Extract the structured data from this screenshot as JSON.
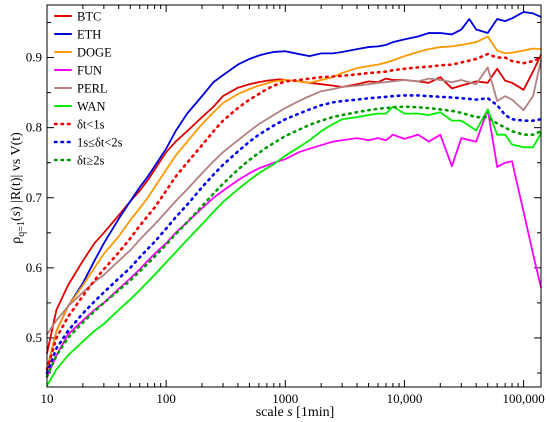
{
  "chart_data": {
    "type": "line",
    "xscale": "log",
    "xlim": [
      10,
      140000
    ],
    "ylim": [
      0.43,
      0.975
    ],
    "xlabel": {
      "prefix": "scale ",
      "var": "s",
      "unit": " [1min]"
    },
    "ylabel": {
      "rho": "ρ",
      "sub": "q=1",
      "rest_a": "(",
      "var": "s",
      "rest_b": ") |R(t)| vs V(t)"
    },
    "xticks": [
      {
        "value": 10,
        "label": "10"
      },
      {
        "value": 100,
        "label": "100"
      },
      {
        "value": 1000,
        "label": "1000"
      },
      {
        "value": 10000,
        "label": "10,000"
      },
      {
        "value": 100000,
        "label": "100,000"
      }
    ],
    "yticks": [
      {
        "value": 0.5,
        "label": "0.5"
      },
      {
        "value": 0.6,
        "label": "0.6"
      },
      {
        "value": 0.7,
        "label": "0.7"
      },
      {
        "value": 0.8,
        "label": "0.8"
      },
      {
        "value": 0.9,
        "label": "0.9"
      }
    ],
    "legend_position": "top-left",
    "series": [
      {
        "name": "BTC",
        "color": "#dd0000",
        "dash": "solid",
        "x": [
          10,
          12,
          15,
          20,
          25,
          30,
          40,
          50,
          60,
          70,
          80,
          100,
          120,
          150,
          200,
          250,
          300,
          400,
          500,
          600,
          700,
          800,
          900,
          1000,
          1300,
          1600,
          2000,
          2500,
          3000,
          4000,
          5000,
          6000,
          7000,
          8000,
          10000,
          13000,
          16000,
          20000,
          25000,
          30000,
          40000,
          50000,
          60000,
          70000,
          80000,
          100000,
          120000,
          140000
        ],
        "y": [
          0.478,
          0.54,
          0.575,
          0.61,
          0.635,
          0.65,
          0.675,
          0.695,
          0.71,
          0.725,
          0.74,
          0.765,
          0.78,
          0.795,
          0.815,
          0.83,
          0.845,
          0.857,
          0.862,
          0.865,
          0.867,
          0.868,
          0.869,
          0.868,
          0.866,
          0.864,
          0.862,
          0.86,
          0.858,
          0.862,
          0.866,
          0.865,
          0.87,
          0.868,
          0.868,
          0.866,
          0.864,
          0.872,
          0.856,
          0.86,
          0.866,
          0.864,
          0.884,
          0.867,
          0.864,
          0.854,
          0.88,
          0.904
        ]
      },
      {
        "name": "ETH",
        "color": "#0000dd",
        "dash": "solid",
        "x": [
          10,
          12,
          15,
          20,
          25,
          30,
          40,
          50,
          60,
          70,
          80,
          100,
          120,
          150,
          200,
          250,
          300,
          400,
          500,
          600,
          700,
          800,
          1000,
          1300,
          1600,
          2000,
          2500,
          3000,
          4000,
          5000,
          6000,
          7000,
          8000,
          10000,
          13000,
          16000,
          20000,
          25000,
          30000,
          35000,
          40000,
          50000,
          60000,
          70000,
          80000,
          100000,
          120000,
          140000
        ],
        "y": [
          0.455,
          0.51,
          0.545,
          0.578,
          0.61,
          0.635,
          0.67,
          0.695,
          0.715,
          0.73,
          0.745,
          0.77,
          0.795,
          0.82,
          0.845,
          0.865,
          0.875,
          0.89,
          0.898,
          0.903,
          0.906,
          0.908,
          0.909,
          0.905,
          0.902,
          0.906,
          0.906,
          0.908,
          0.912,
          0.915,
          0.916,
          0.918,
          0.922,
          0.926,
          0.93,
          0.935,
          0.935,
          0.933,
          0.94,
          0.955,
          0.94,
          0.935,
          0.955,
          0.952,
          0.956,
          0.965,
          0.963,
          0.958
        ]
      },
      {
        "name": "DOGE",
        "color": "#ff9900",
        "dash": "solid",
        "x": [
          10,
          12,
          15,
          20,
          25,
          30,
          40,
          50,
          60,
          70,
          80,
          100,
          120,
          150,
          200,
          250,
          300,
          400,
          500,
          600,
          700,
          800,
          1000,
          1300,
          1600,
          2000,
          2500,
          3000,
          4000,
          5000,
          6000,
          7000,
          8000,
          10000,
          13000,
          16000,
          20000,
          25000,
          30000,
          40000,
          50000,
          60000,
          70000,
          80000,
          100000,
          120000,
          140000
        ],
        "y": [
          0.455,
          0.51,
          0.545,
          0.575,
          0.6,
          0.62,
          0.645,
          0.668,
          0.685,
          0.7,
          0.715,
          0.74,
          0.76,
          0.78,
          0.805,
          0.822,
          0.835,
          0.848,
          0.855,
          0.86,
          0.863,
          0.866,
          0.868,
          0.866,
          0.864,
          0.868,
          0.872,
          0.878,
          0.885,
          0.888,
          0.89,
          0.893,
          0.896,
          0.902,
          0.908,
          0.912,
          0.915,
          0.916,
          0.918,
          0.922,
          0.93,
          0.91,
          0.906,
          0.907,
          0.91,
          0.913,
          0.912
        ]
      },
      {
        "name": "FUN",
        "color": "#ff00ff",
        "dash": "solid",
        "x": [
          10,
          12,
          15,
          20,
          25,
          30,
          40,
          50,
          60,
          70,
          80,
          100,
          120,
          150,
          200,
          250,
          300,
          400,
          500,
          600,
          700,
          800,
          1000,
          1300,
          1600,
          2000,
          2500,
          3000,
          4000,
          5000,
          6000,
          7000,
          8000,
          10000,
          13000,
          16000,
          20000,
          25000,
          30000,
          40000,
          50000,
          60000,
          70000,
          80000,
          100000,
          120000,
          140000
        ],
        "y": [
          0.445,
          0.475,
          0.505,
          0.525,
          0.54,
          0.55,
          0.57,
          0.585,
          0.598,
          0.61,
          0.62,
          0.635,
          0.65,
          0.665,
          0.685,
          0.7,
          0.71,
          0.725,
          0.735,
          0.742,
          0.746,
          0.75,
          0.755,
          0.765,
          0.77,
          0.775,
          0.78,
          0.782,
          0.785,
          0.782,
          0.785,
          0.782,
          0.79,
          0.784,
          0.79,
          0.78,
          0.79,
          0.745,
          0.785,
          0.78,
          0.826,
          0.744,
          0.75,
          0.752,
          0.68,
          0.62,
          0.572
        ]
      },
      {
        "name": "PERL",
        "color": "#b38080",
        "dash": "solid",
        "x": [
          10,
          12,
          15,
          20,
          25,
          30,
          40,
          50,
          60,
          70,
          80,
          100,
          120,
          150,
          200,
          250,
          300,
          400,
          500,
          600,
          700,
          800,
          1000,
          1300,
          1600,
          2000,
          2500,
          3000,
          4000,
          5000,
          6000,
          7000,
          8000,
          10000,
          13000,
          16000,
          20000,
          25000,
          30000,
          40000,
          50000,
          60000,
          70000,
          80000,
          100000,
          120000,
          140000
        ],
        "y": [
          0.505,
          0.525,
          0.545,
          0.565,
          0.58,
          0.59,
          0.61,
          0.625,
          0.64,
          0.652,
          0.662,
          0.68,
          0.695,
          0.712,
          0.735,
          0.752,
          0.765,
          0.782,
          0.795,
          0.805,
          0.812,
          0.818,
          0.828,
          0.838,
          0.845,
          0.852,
          0.855,
          0.858,
          0.86,
          0.862,
          0.864,
          0.865,
          0.866,
          0.868,
          0.866,
          0.87,
          0.868,
          0.865,
          0.868,
          0.862,
          0.886,
          0.838,
          0.845,
          0.84,
          0.825,
          0.845,
          0.896
        ]
      },
      {
        "name": "WAN",
        "color": "#00ee00",
        "dash": "solid",
        "x": [
          10,
          12,
          15,
          20,
          25,
          30,
          40,
          50,
          60,
          70,
          80,
          100,
          120,
          150,
          200,
          250,
          300,
          400,
          500,
          600,
          700,
          800,
          1000,
          1300,
          1600,
          2000,
          2500,
          3000,
          4000,
          5000,
          6000,
          7000,
          8000,
          10000,
          13000,
          16000,
          20000,
          25000,
          30000,
          40000,
          50000,
          60000,
          70000,
          80000,
          100000,
          120000,
          140000
        ],
        "y": [
          0.432,
          0.455,
          0.475,
          0.495,
          0.51,
          0.52,
          0.54,
          0.555,
          0.568,
          0.58,
          0.59,
          0.608,
          0.622,
          0.64,
          0.662,
          0.68,
          0.694,
          0.712,
          0.725,
          0.735,
          0.742,
          0.748,
          0.76,
          0.772,
          0.782,
          0.795,
          0.805,
          0.812,
          0.815,
          0.818,
          0.82,
          0.82,
          0.83,
          0.82,
          0.82,
          0.818,
          0.822,
          0.81,
          0.81,
          0.796,
          0.826,
          0.79,
          0.79,
          0.776,
          0.772,
          0.772,
          0.792
        ]
      },
      {
        "name": "δt<1s",
        "color": "#ee0000",
        "dash": "dotted",
        "x": [
          10,
          12,
          15,
          20,
          25,
          30,
          40,
          50,
          60,
          70,
          80,
          100,
          120,
          150,
          200,
          250,
          300,
          400,
          500,
          600,
          700,
          800,
          1000,
          1300,
          1600,
          2000,
          2500,
          3000,
          4000,
          5000,
          6000,
          7000,
          8000,
          10000,
          13000,
          16000,
          20000,
          25000,
          30000,
          40000,
          50000,
          60000,
          70000,
          80000,
          100000,
          120000,
          140000
        ],
        "y": [
          0.455,
          0.5,
          0.53,
          0.56,
          0.582,
          0.598,
          0.622,
          0.642,
          0.66,
          0.674,
          0.686,
          0.71,
          0.73,
          0.75,
          0.775,
          0.795,
          0.81,
          0.828,
          0.84,
          0.848,
          0.855,
          0.86,
          0.866,
          0.868,
          0.87,
          0.872,
          0.873,
          0.874,
          0.876,
          0.878,
          0.879,
          0.88,
          0.882,
          0.884,
          0.886,
          0.887,
          0.889,
          0.89,
          0.893,
          0.898,
          0.905,
          0.9,
          0.9,
          0.895,
          0.892,
          0.895,
          0.9
        ]
      },
      {
        "name": "1s≤δt<2s",
        "color": "#0000ee",
        "dash": "dotted",
        "x": [
          10,
          12,
          15,
          20,
          25,
          30,
          40,
          50,
          60,
          70,
          80,
          100,
          120,
          150,
          200,
          250,
          300,
          400,
          500,
          600,
          700,
          800,
          1000,
          1300,
          1600,
          2000,
          2500,
          3000,
          4000,
          5000,
          6000,
          7000,
          8000,
          10000,
          13000,
          16000,
          20000,
          25000,
          30000,
          40000,
          50000,
          60000,
          70000,
          80000,
          100000,
          120000,
          140000
        ],
        "y": [
          0.45,
          0.485,
          0.51,
          0.535,
          0.552,
          0.565,
          0.585,
          0.6,
          0.615,
          0.627,
          0.637,
          0.656,
          0.672,
          0.69,
          0.715,
          0.733,
          0.747,
          0.766,
          0.78,
          0.79,
          0.797,
          0.803,
          0.812,
          0.82,
          0.826,
          0.832,
          0.836,
          0.838,
          0.84,
          0.842,
          0.843,
          0.844,
          0.845,
          0.846,
          0.846,
          0.845,
          0.844,
          0.843,
          0.842,
          0.84,
          0.842,
          0.832,
          0.818,
          0.812,
          0.81,
          0.81,
          0.812
        ]
      },
      {
        "name": "δt≥2s",
        "color": "#009900",
        "dash": "dotted",
        "x": [
          10,
          12,
          15,
          20,
          25,
          30,
          40,
          50,
          60,
          70,
          80,
          100,
          120,
          150,
          200,
          250,
          300,
          400,
          500,
          600,
          700,
          800,
          1000,
          1300,
          1600,
          2000,
          2500,
          3000,
          4000,
          5000,
          6000,
          7000,
          8000,
          10000,
          13000,
          16000,
          20000,
          25000,
          30000,
          40000,
          50000,
          60000,
          70000,
          80000,
          100000,
          120000,
          140000
        ],
        "y": [
          0.445,
          0.475,
          0.5,
          0.522,
          0.538,
          0.55,
          0.568,
          0.582,
          0.595,
          0.606,
          0.616,
          0.633,
          0.648,
          0.665,
          0.688,
          0.706,
          0.72,
          0.74,
          0.754,
          0.764,
          0.772,
          0.778,
          0.788,
          0.797,
          0.804,
          0.81,
          0.815,
          0.818,
          0.822,
          0.825,
          0.827,
          0.828,
          0.829,
          0.83,
          0.829,
          0.828,
          0.826,
          0.824,
          0.821,
          0.815,
          0.815,
          0.806,
          0.8,
          0.795,
          0.79,
          0.79,
          0.795
        ]
      }
    ]
  }
}
